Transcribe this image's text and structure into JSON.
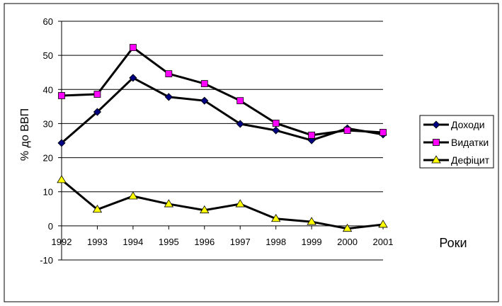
{
  "chart_data": {
    "type": "line",
    "title": "",
    "xlabel": "Роки",
    "ylabel": "% до ВВП",
    "ylim": [
      -10,
      60
    ],
    "yticks": [
      -10,
      0,
      10,
      20,
      30,
      40,
      50,
      60
    ],
    "grid": true,
    "legend_position": "right",
    "categories": [
      "1992",
      "1993",
      "1994",
      "1995",
      "1996",
      "1997",
      "1998",
      "1999",
      "2000",
      "2001"
    ],
    "series": [
      {
        "name": "Доходи",
        "marker": "diamond",
        "color": "#000080",
        "values": [
          24.3,
          33.4,
          43.4,
          37.8,
          36.7,
          29.9,
          28.0,
          25.1,
          28.6,
          26.8
        ]
      },
      {
        "name": "Видатки",
        "marker": "square",
        "color": "#FF00FF",
        "values": [
          38.2,
          38.6,
          52.3,
          44.6,
          41.7,
          36.7,
          30.1,
          26.6,
          28.0,
          27.4
        ]
      },
      {
        "name": "Дефіцит",
        "marker": "triangle",
        "color": "#FFFF00",
        "values": [
          13.5,
          4.8,
          8.7,
          6.4,
          4.6,
          6.4,
          2.1,
          1.2,
          -0.8,
          0.4
        ]
      }
    ]
  }
}
